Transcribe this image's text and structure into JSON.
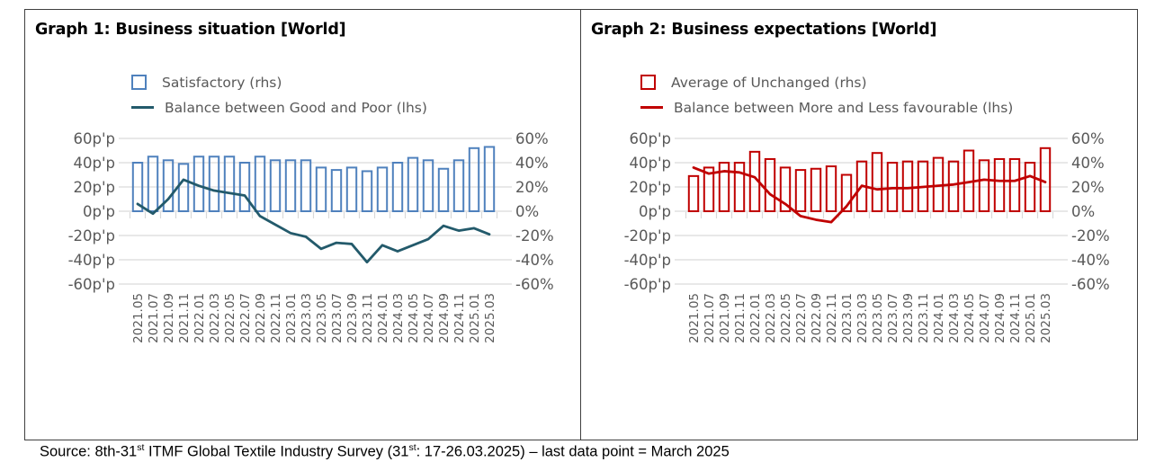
{
  "source": {
    "part1": "Source: 8th-31",
    "sup1": "st",
    "part2": " ITMF Global Textile Industry Survey (31",
    "sup2": "st",
    "part3": ": 17-26.03.2025) – last data point = March 2025"
  },
  "colors": {
    "graph1_bar": "#4F81BD",
    "graph1_line": "#235A6B",
    "graph2_bar": "#C00000",
    "graph2_line": "#C00000",
    "gridline": "#D9D9D9",
    "axis_label": "#595959",
    "panel_border": "#404040"
  },
  "chart_data": [
    {
      "type": "bar+line",
      "title": "Graph 1: Business situation [World]",
      "categories": [
        "2021.05",
        "2021.07",
        "2021.09",
        "2021.11",
        "2022.01",
        "2022.03",
        "2022.05",
        "2022.07",
        "2022.09",
        "2022.11",
        "2023.01",
        "2023.03",
        "2023.05",
        "2023.07",
        "2023.09",
        "2023.11",
        "2024.01",
        "2024.03",
        "2024.05",
        "2024.07",
        "2024.09",
        "2024.11",
        "2025.01",
        "2025.03"
      ],
      "series": [
        {
          "name": "Satisfactory (rhs)",
          "type": "bar",
          "axis": "right",
          "unit": "%",
          "color": "#4F81BD",
          "values": [
            40,
            45,
            42,
            39,
            45,
            45,
            45,
            40,
            45,
            42,
            42,
            42,
            36,
            34,
            36,
            33,
            36,
            40,
            44,
            42,
            35,
            42,
            52,
            53
          ]
        },
        {
          "name": "Balance between Good and Poor (lhs)",
          "type": "line",
          "axis": "left",
          "unit": "p'p",
          "color": "#235A6B",
          "values": [
            6,
            -2,
            10,
            26,
            21,
            17,
            15,
            13,
            -4,
            -11,
            -18,
            -21,
            -31,
            -26,
            -27,
            -42,
            -28,
            -33,
            -28,
            -23,
            -12,
            -16,
            -14,
            -19
          ]
        }
      ],
      "ylim_left": [
        -60,
        60
      ],
      "ylim_right": [
        -60,
        60
      ],
      "yticks_left": [
        "60p'p",
        "40p'p",
        "20p'p",
        "0p'p",
        "-20p'p",
        "-40p'p",
        "-60p'p"
      ],
      "yticks_right": [
        "60%",
        "40%",
        "20%",
        "0%",
        "-20%",
        "-40%",
        "-60%"
      ],
      "ytick_values": [
        60,
        40,
        20,
        0,
        -20,
        -40,
        -60
      ],
      "grid": true,
      "legend_position": "top",
      "xlabel_rotation": -90
    },
    {
      "type": "bar+line",
      "title": "Graph 2: Business expectations [World]",
      "categories": [
        "2021.05",
        "2021.07",
        "2021.09",
        "2021.11",
        "2022.01",
        "2022.03",
        "2022.05",
        "2022.07",
        "2022.09",
        "2022.11",
        "2023.01",
        "2023.03",
        "2023.05",
        "2023.07",
        "2023.09",
        "2023.11",
        "2024.01",
        "2024.03",
        "2024.05",
        "2024.07",
        "2024.09",
        "2024.11",
        "2025.01",
        "2025.03"
      ],
      "series": [
        {
          "name": "Average of Unchanged (rhs)",
          "type": "bar",
          "axis": "right",
          "unit": "%",
          "color": "#C00000",
          "values": [
            29,
            36,
            40,
            40,
            49,
            43,
            36,
            34,
            35,
            37,
            30,
            41,
            48,
            40,
            41,
            41,
            44,
            41,
            50,
            42,
            43,
            43,
            40,
            52
          ]
        },
        {
          "name": "Balance between More and Less favourable (lhs)",
          "type": "line",
          "axis": "left",
          "unit": "p'p",
          "color": "#C00000",
          "values": [
            36,
            31,
            33,
            32,
            28,
            14,
            6,
            -4,
            -7,
            -9,
            4,
            21,
            18,
            19,
            19,
            20,
            21,
            22,
            24,
            26,
            25,
            25,
            29,
            24
          ]
        }
      ],
      "ylim_left": [
        -60,
        60
      ],
      "ylim_right": [
        -60,
        60
      ],
      "yticks_left": [
        "60p'p",
        "40p'p",
        "20p'p",
        "0p'p",
        "-20p'p",
        "-40p'p",
        "-60p'p"
      ],
      "yticks_right": [
        "60%",
        "40%",
        "20%",
        "0%",
        "-20%",
        "-40%",
        "-60%"
      ],
      "ytick_values": [
        60,
        40,
        20,
        0,
        -20,
        -40,
        -60
      ],
      "grid": true,
      "legend_position": "top",
      "xlabel_rotation": -90
    }
  ]
}
